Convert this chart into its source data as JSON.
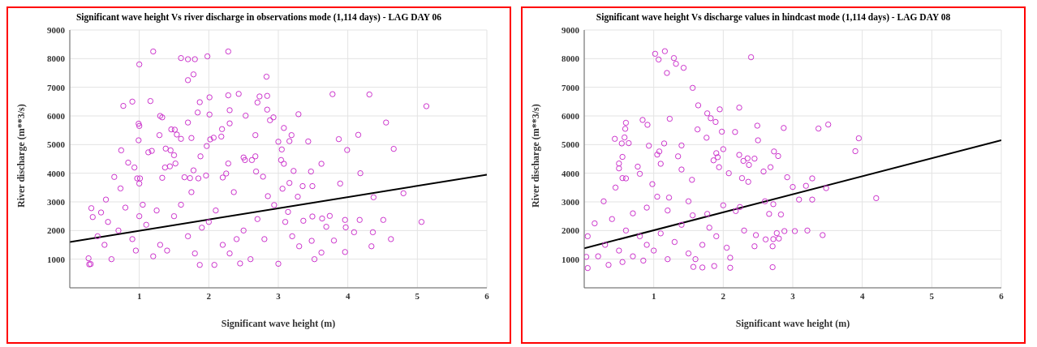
{
  "chart_data": [
    {
      "type": "scatter",
      "title": "Significant wave height Vs river discharge in observations mode (1,114 days) - LAG DAY 06",
      "xlabel": "Significant wave height (m)",
      "ylabel": "River discharge (m**3/s)",
      "xlim": [
        0,
        6
      ],
      "xticks": [
        1,
        2,
        3,
        4,
        5,
        6
      ],
      "ylim": [
        0,
        9000
      ],
      "yticks": [
        1000,
        2000,
        3000,
        4000,
        5000,
        6000,
        7000,
        8000,
        9000
      ],
      "grid": true,
      "series": [
        {
          "marker": "circle",
          "color": "#cc33cc",
          "x": [
            1.2,
            2.28,
            1.0,
            1.6,
            1.7,
            1.8,
            1.98,
            1.78,
            1.7,
            2.83,
            0.77,
            0.9,
            1.16,
            1.87,
            2.01,
            2.28,
            2.43,
            2.73,
            2.84,
            2.7,
            3.78,
            4.31,
            5.13,
            1.3,
            1.33,
            1.84,
            2.01,
            2.3,
            2.53,
            2.84,
            2.93,
            2.88,
            3.29,
            4.55,
            0.99,
            1.0,
            1.7,
            2.3,
            1.46,
            1.51,
            2.19,
            3.08,
            0.99,
            1.6,
            1.75,
            2.07,
            2.02,
            2.18,
            1.29,
            1.54,
            2.67,
            3.0,
            3.16,
            3.19,
            3.43,
            3.87,
            4.15,
            0.74,
            1.18,
            1.13,
            1.38,
            1.45,
            1.5,
            1.97,
            1.88,
            2.5,
            2.52,
            2.62,
            2.67,
            3.04,
            3.05,
            3.08,
            3.62,
            3.99,
            4.66,
            0.84,
            0.93,
            1.37,
            1.44,
            1.52,
            2.28,
            1.78,
            2.68,
            3.22,
            3.47,
            4.18,
            0.64,
            0.97,
            1.01,
            1.0,
            1.33,
            1.65,
            1.73,
            1.85,
            1.96,
            2.2,
            2.25,
            2.78,
            3.16,
            3.06,
            3.35,
            3.49,
            3.89,
            0.73,
            4.8,
            4.37,
            3.28,
            2.85,
            2.36,
            1.75,
            0.52,
            0.31,
            0.45,
            0.33,
            2.94,
            3.14,
            3.36,
            3.49,
            3.63,
            3.74,
            3.96,
            4.17,
            4.51,
            5.06,
            3.69,
            3.97,
            4.09,
            4.36,
            4.62,
            3.8,
            3.48,
            3.96,
            4.34,
            3.62,
            3.52,
            3.0,
            1.87,
            2.08,
            0.28,
            0.3,
            0.27,
            2.45,
            2.6,
            0.5,
            0.7,
            0.9,
            1.1,
            1.3,
            1.5,
            1.7,
            2.0,
            2.2,
            2.5,
            2.8,
            1.2,
            0.6,
            0.8,
            1.0,
            1.6,
            2.1,
            0.4,
            1.4,
            2.3,
            2.7,
            3.2,
            3.3,
            1.8,
            0.95,
            1.25,
            1.9,
            2.4,
            3.1,
            1.05,
            0.55
          ],
          "values": [
            8250,
            8250,
            7800,
            8020,
            7980,
            7980,
            8080,
            7450,
            7250,
            7370,
            6350,
            6500,
            6520,
            6480,
            6650,
            6720,
            6770,
            6680,
            6700,
            6470,
            6760,
            6750,
            6340,
            6000,
            5950,
            6120,
            6050,
            6200,
            6010,
            6220,
            5950,
            5850,
            6060,
            5770,
            5730,
            5650,
            5770,
            5740,
            5530,
            5520,
            5540,
            5580,
            5150,
            5200,
            5230,
            5240,
            5180,
            5280,
            5330,
            5350,
            5330,
            5100,
            5120,
            5330,
            5110,
            5190,
            5340,
            4800,
            4780,
            4730,
            4860,
            4800,
            4630,
            4950,
            4590,
            4550,
            4460,
            4460,
            4590,
            4460,
            4830,
            4330,
            4330,
            4810,
            4850,
            4370,
            4200,
            4200,
            4240,
            4340,
            4340,
            4100,
            4060,
            4080,
            4060,
            4000,
            3870,
            3820,
            3820,
            3640,
            3840,
            3860,
            3830,
            3820,
            3920,
            3850,
            3990,
            3880,
            3660,
            3460,
            3550,
            3550,
            3640,
            3470,
            3300,
            3160,
            3180,
            3200,
            3340,
            3340,
            3080,
            2780,
            2630,
            2470,
            2890,
            2650,
            2340,
            2490,
            2420,
            2510,
            2370,
            2370,
            2370,
            2300,
            2130,
            2110,
            1940,
            1940,
            1700,
            1650,
            1640,
            1250,
            1450,
            1230,
            1000,
            840,
            800,
            800,
            820,
            830,
            1030,
            850,
            1000,
            1500,
            2000,
            1700,
            2200,
            1500,
            2500,
            1800,
            2300,
            1500,
            2000,
            1700,
            1100,
            1000,
            2800,
            2500,
            2900,
            2700,
            1800,
            1300,
            1200,
            2400,
            1800,
            1450,
            1200,
            1300,
            2700,
            2100,
            1700,
            2300,
            2900,
            2300
          ]
        },
        {
          "type": "line",
          "color": "#000000",
          "x": [
            0,
            6
          ],
          "values": [
            1600,
            3950
          ]
        }
      ]
    },
    {
      "type": "scatter",
      "title": "Significant wave height Vs discharge values in hindcast mode (1,114 days) - LAG DAY 08",
      "xlabel": "Significant wave height (m)",
      "ylabel": "River discharge (m**3/s)",
      "xlim": [
        0,
        6
      ],
      "xticks": [
        1,
        2,
        3,
        4,
        5,
        6
      ],
      "ylim": [
        0,
        9000
      ],
      "yticks": [
        1000,
        2000,
        3000,
        4000,
        5000,
        6000,
        7000,
        8000,
        9000
      ],
      "grid": true,
      "series": [
        {
          "marker": "circle",
          "color": "#cc33cc",
          "x": [
            1.02,
            1.07,
            1.16,
            1.29,
            1.32,
            1.43,
            1.19,
            2.4,
            1.56,
            1.64,
            1.95,
            2.23,
            1.77,
            1.82,
            1.89,
            1.23,
            0.84,
            0.91,
            0.6,
            0.59,
            0.58,
            0.44,
            0.54,
            0.64,
            0.93,
            1.15,
            1.05,
            1.08,
            1.1,
            1.35,
            1.4,
            1.63,
            1.76,
            1.98,
            2.17,
            2.49,
            2.5,
            2.87,
            3.37,
            3.51,
            3.95,
            3.9,
            2.0,
            1.9,
            1.92,
            1.86,
            2.23,
            2.35,
            2.29,
            2.37,
            2.45,
            2.73,
            2.79,
            2.68,
            2.58,
            1.94,
            1.4,
            0.77,
            0.8,
            0.55,
            0.5,
            0.5,
            0.55,
            0.6,
            2.08,
            2.27,
            2.36,
            2.92,
            3.28,
            3.0,
            3.19,
            3.48,
            3.09,
            3.28,
            4.2,
            2.6,
            2.72,
            2.83,
            2.66,
            2.88,
            3.03,
            3.21,
            3.43,
            2.77,
            2.72,
            2.8,
            2.61,
            2.47,
            2.71,
            2.71,
            2.1,
            1.87,
            1.7,
            1.57,
            0.05,
            0.2,
            0.03,
            0.05,
            0.15,
            0.28,
            0.45,
            0.98,
            1.05,
            1.22,
            1.5,
            1.55,
            1.77,
            2.0,
            2.18,
            2.24,
            1.56,
            1.2,
            0.9,
            0.7,
            0.4,
            0.3,
            0.5,
            0.7,
            0.9,
            1.1,
            1.3,
            1.5,
            1.7,
            1.9,
            2.05,
            2.3,
            2.45,
            0.6,
            0.8,
            1.0,
            1.2,
            1.4,
            0.35,
            0.55,
            0.85,
            1.6,
            2.1,
            1.8
          ],
          "values": [
            8170,
            7970,
            8260,
            8020,
            7820,
            7680,
            7500,
            8050,
            6980,
            6370,
            6230,
            6290,
            6090,
            5920,
            5790,
            5900,
            5860,
            5690,
            5760,
            5550,
            5250,
            5200,
            5040,
            5050,
            4960,
            5040,
            4650,
            4760,
            4330,
            4590,
            4970,
            5530,
            5240,
            5450,
            5440,
            5660,
            5150,
            5580,
            5560,
            5700,
            5220,
            4770,
            4840,
            4700,
            4560,
            4450,
            4640,
            4520,
            4430,
            4290,
            4510,
            4760,
            4600,
            4210,
            4060,
            4210,
            4130,
            4230,
            3980,
            4570,
            4340,
            4170,
            3830,
            3820,
            4000,
            3830,
            3700,
            3860,
            3820,
            3520,
            3560,
            3480,
            3080,
            3080,
            3130,
            3020,
            2920,
            2560,
            2580,
            1980,
            1980,
            2000,
            1840,
            1910,
            1700,
            1720,
            1690,
            1840,
            1450,
            720,
            700,
            760,
            710,
            730,
            690,
            1100,
            1080,
            1800,
            2250,
            3020,
            3500,
            3620,
            3180,
            3150,
            3020,
            3770,
            2580,
            2880,
            2680,
            2820,
            2530,
            2700,
            2800,
            2600,
            2400,
            1500,
            1300,
            1100,
            1500,
            1900,
            1600,
            1200,
            1500,
            1800,
            1400,
            2000,
            1450,
            2000,
            1800,
            1300,
            1000,
            2200,
            800,
            900,
            950,
            1000,
            1050,
            2100
          ]
        },
        {
          "type": "line",
          "color": "#000000",
          "x": [
            0,
            6
          ],
          "values": [
            1380,
            5150
          ]
        }
      ]
    }
  ]
}
